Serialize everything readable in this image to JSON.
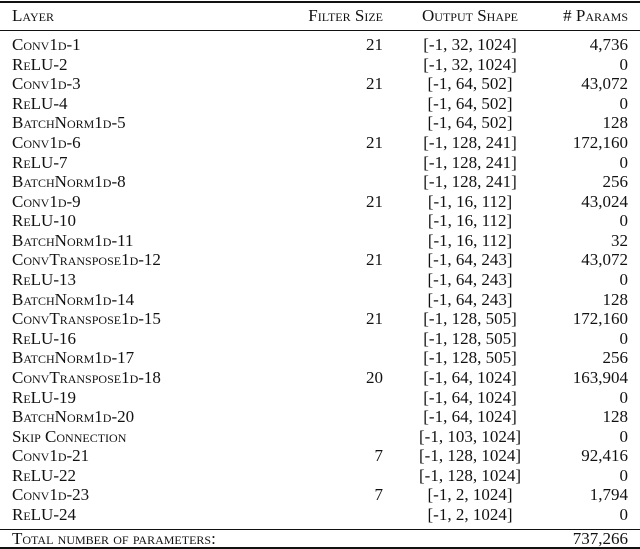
{
  "table": {
    "header": [
      "Layer",
      "Filter Size",
      "Output Shape",
      "# Params"
    ],
    "rows": [
      [
        "Conv1d-1",
        "21",
        "[-1, 32, 1024]",
        "4,736"
      ],
      [
        "ReLU-2",
        null,
        "[-1, 32, 1024]",
        "0"
      ],
      [
        "Conv1d-3",
        "21",
        "[-1, 64, 502]",
        "43,072"
      ],
      [
        "ReLU-4",
        null,
        "[-1, 64, 502]",
        "0"
      ],
      [
        "BatchNorm1d-5",
        null,
        "[-1, 64, 502]",
        "128"
      ],
      [
        "Conv1d-6",
        "21",
        "[-1, 128, 241]",
        "172,160"
      ],
      [
        "ReLU-7",
        null,
        "[-1, 128, 241]",
        "0"
      ],
      [
        "BatchNorm1d-8",
        null,
        "[-1, 128, 241]",
        "256"
      ],
      [
        "Conv1d-9",
        "21",
        "[-1, 16, 112]",
        "43,024"
      ],
      [
        "ReLU-10",
        null,
        "[-1, 16, 112]",
        "0"
      ],
      [
        "BatchNorm1d-11",
        null,
        "[-1, 16, 112]",
        "32"
      ],
      [
        "ConvTranspose1d-12",
        "21",
        "[-1, 64, 243]",
        "43,072"
      ],
      [
        "ReLU-13",
        null,
        "[-1, 64, 243]",
        "0"
      ],
      [
        "BatchNorm1d-14",
        null,
        "[-1, 64, 243]",
        "128"
      ],
      [
        "ConvTranspose1d-15",
        "21",
        "[-1, 128, 505]",
        "172,160"
      ],
      [
        "ReLU-16",
        null,
        "[-1, 128, 505]",
        "0"
      ],
      [
        "BatchNorm1d-17",
        null,
        "[-1, 128, 505]",
        "256"
      ],
      [
        "ConvTranspose1d-18",
        "20",
        "[-1, 64, 1024]",
        "163,904"
      ],
      [
        "ReLU-19",
        null,
        "[-1, 64, 1024]",
        "0"
      ],
      [
        "BatchNorm1d-20",
        null,
        "[-1, 64, 1024]",
        "128"
      ],
      [
        "Skip Connection",
        null,
        "[-1, 103, 1024]",
        "0"
      ],
      [
        "Conv1d-21",
        "7",
        "[-1, 128, 1024]",
        "92,416"
      ],
      [
        "ReLU-22",
        null,
        "[-1, 128, 1024]",
        "0"
      ],
      [
        "Conv1d-23",
        "7",
        "[-1, 2, 1024]",
        "1,794"
      ],
      [
        "ReLU-24",
        null,
        "[-1, 2, 1024]",
        "0"
      ]
    ],
    "footer": [
      "Total number of parameters:",
      "737,266"
    ]
  }
}
